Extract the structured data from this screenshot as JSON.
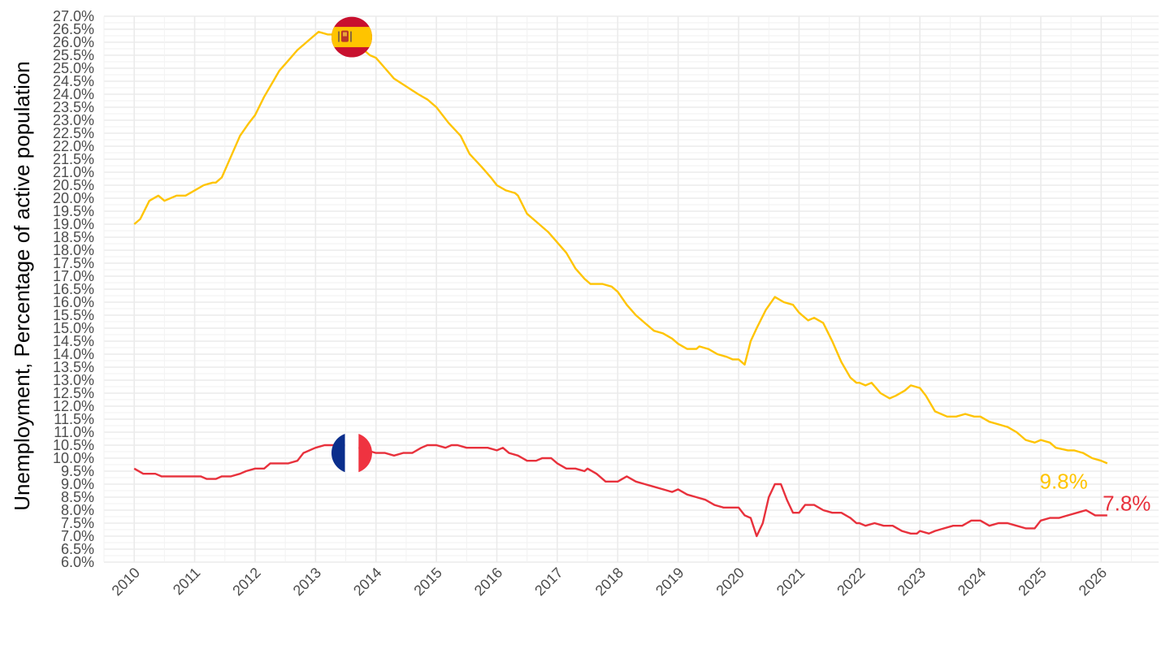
{
  "chart_data": {
    "type": "line",
    "title": "",
    "xlabel": "",
    "ylabel": "Unemployment, Percentage of active population",
    "xlim": [
      2009.5,
      2026.95
    ],
    "ylim": [
      6.0,
      27.0
    ],
    "y_ticks": [
      "6.0%",
      "6.5%",
      "7.0%",
      "7.5%",
      "8.0%",
      "8.5%",
      "9.0%",
      "9.5%",
      "10.0%",
      "10.5%",
      "11.0%",
      "11.5%",
      "12.0%",
      "12.5%",
      "13.0%",
      "13.5%",
      "14.0%",
      "14.5%",
      "15.0%",
      "15.5%",
      "16.0%",
      "16.5%",
      "17.0%",
      "17.5%",
      "18.0%",
      "18.5%",
      "19.0%",
      "19.5%",
      "20.0%",
      "20.5%",
      "21.0%",
      "21.5%",
      "22.0%",
      "22.5%",
      "23.0%",
      "23.5%",
      "24.0%",
      "24.5%",
      "25.0%",
      "25.5%",
      "26.0%",
      "26.5%",
      "27.0%"
    ],
    "x_ticks": [
      "2010",
      "2011",
      "2012",
      "2013",
      "2014",
      "2015",
      "2016",
      "2017",
      "2018",
      "2019",
      "2020",
      "2021",
      "2022",
      "2023",
      "2024",
      "2025",
      "2026"
    ],
    "grid": true,
    "legend": "none",
    "series": [
      {
        "country": "Spain",
        "color": "#FFC400",
        "flag_icon": "spain-flag-icon",
        "flag_at": [
          2013.6,
          26.2
        ],
        "end_label": "9.8%",
        "points": [
          [
            2010.0,
            19.0
          ],
          [
            2010.1,
            19.2
          ],
          [
            2010.25,
            19.9
          ],
          [
            2010.4,
            20.1
          ],
          [
            2010.5,
            19.9
          ],
          [
            2010.7,
            20.1
          ],
          [
            2010.85,
            20.1
          ],
          [
            2011.0,
            20.3
          ],
          [
            2011.15,
            20.5
          ],
          [
            2011.3,
            20.6
          ],
          [
            2011.35,
            20.6
          ],
          [
            2011.45,
            20.8
          ],
          [
            2011.6,
            21.6
          ],
          [
            2011.75,
            22.4
          ],
          [
            2011.9,
            22.9
          ],
          [
            2012.0,
            23.2
          ],
          [
            2012.15,
            23.9
          ],
          [
            2012.3,
            24.5
          ],
          [
            2012.4,
            24.9
          ],
          [
            2012.55,
            25.3
          ],
          [
            2012.7,
            25.7
          ],
          [
            2012.85,
            26.0
          ],
          [
            2012.95,
            26.2
          ],
          [
            2013.05,
            26.4
          ],
          [
            2013.2,
            26.3
          ],
          [
            2013.35,
            26.3
          ],
          [
            2013.5,
            26.1
          ],
          [
            2013.65,
            25.9
          ],
          [
            2013.8,
            25.7
          ],
          [
            2013.9,
            25.5
          ],
          [
            2014.0,
            25.4
          ],
          [
            2014.15,
            25.0
          ],
          [
            2014.3,
            24.6
          ],
          [
            2014.5,
            24.3
          ],
          [
            2014.7,
            24.0
          ],
          [
            2014.85,
            23.8
          ],
          [
            2015.0,
            23.5
          ],
          [
            2015.2,
            22.9
          ],
          [
            2015.4,
            22.4
          ],
          [
            2015.55,
            21.7
          ],
          [
            2015.75,
            21.2
          ],
          [
            2015.9,
            20.8
          ],
          [
            2016.0,
            20.5
          ],
          [
            2016.15,
            20.3
          ],
          [
            2016.3,
            20.2
          ],
          [
            2016.35,
            20.1
          ],
          [
            2016.5,
            19.4
          ],
          [
            2016.7,
            19.0
          ],
          [
            2016.85,
            18.7
          ],
          [
            2017.0,
            18.3
          ],
          [
            2017.15,
            17.9
          ],
          [
            2017.3,
            17.3
          ],
          [
            2017.45,
            16.9
          ],
          [
            2017.55,
            16.7
          ],
          [
            2017.75,
            16.7
          ],
          [
            2017.9,
            16.6
          ],
          [
            2018.0,
            16.4
          ],
          [
            2018.15,
            15.9
          ],
          [
            2018.3,
            15.5
          ],
          [
            2018.45,
            15.2
          ],
          [
            2018.6,
            14.9
          ],
          [
            2018.75,
            14.8
          ],
          [
            2018.9,
            14.6
          ],
          [
            2019.0,
            14.4
          ],
          [
            2019.15,
            14.2
          ],
          [
            2019.3,
            14.2
          ],
          [
            2019.35,
            14.3
          ],
          [
            2019.5,
            14.2
          ],
          [
            2019.65,
            14.0
          ],
          [
            2019.8,
            13.9
          ],
          [
            2019.9,
            13.8
          ],
          [
            2020.0,
            13.8
          ],
          [
            2020.1,
            13.6
          ],
          [
            2020.2,
            14.5
          ],
          [
            2020.3,
            15.0
          ],
          [
            2020.45,
            15.7
          ],
          [
            2020.6,
            16.2
          ],
          [
            2020.75,
            16.0
          ],
          [
            2020.9,
            15.9
          ],
          [
            2021.0,
            15.6
          ],
          [
            2021.15,
            15.3
          ],
          [
            2021.25,
            15.4
          ],
          [
            2021.4,
            15.2
          ],
          [
            2021.55,
            14.5
          ],
          [
            2021.7,
            13.7
          ],
          [
            2021.85,
            13.1
          ],
          [
            2021.95,
            12.9
          ],
          [
            2022.0,
            12.9
          ],
          [
            2022.1,
            12.8
          ],
          [
            2022.2,
            12.9
          ],
          [
            2022.35,
            12.5
          ],
          [
            2022.5,
            12.3
          ],
          [
            2022.6,
            12.4
          ],
          [
            2022.75,
            12.6
          ],
          [
            2022.85,
            12.8
          ],
          [
            2023.0,
            12.7
          ],
          [
            2023.1,
            12.4
          ],
          [
            2023.25,
            11.8
          ],
          [
            2023.45,
            11.6
          ],
          [
            2023.6,
            11.6
          ],
          [
            2023.75,
            11.7
          ],
          [
            2023.9,
            11.6
          ],
          [
            2024.0,
            11.6
          ],
          [
            2024.15,
            11.4
          ],
          [
            2024.3,
            11.3
          ],
          [
            2024.45,
            11.2
          ],
          [
            2024.6,
            11.0
          ],
          [
            2024.75,
            10.7
          ],
          [
            2024.9,
            10.6
          ],
          [
            2025.0,
            10.7
          ],
          [
            2025.15,
            10.6
          ],
          [
            2025.25,
            10.4
          ],
          [
            2025.45,
            10.3
          ],
          [
            2025.55,
            10.3
          ],
          [
            2025.7,
            10.2
          ],
          [
            2025.85,
            10.0
          ],
          [
            2026.0,
            9.9
          ],
          [
            2026.1,
            9.8
          ]
        ]
      },
      {
        "country": "France",
        "color": "#E8313C",
        "flag_icon": "france-flag-icon",
        "flag_at": [
          2013.6,
          10.2
        ],
        "end_label": "7.8%",
        "points": [
          [
            2010.0,
            9.6
          ],
          [
            2010.15,
            9.4
          ],
          [
            2010.35,
            9.4
          ],
          [
            2010.45,
            9.3
          ],
          [
            2010.6,
            9.3
          ],
          [
            2010.8,
            9.3
          ],
          [
            2011.0,
            9.3
          ],
          [
            2011.1,
            9.3
          ],
          [
            2011.2,
            9.2
          ],
          [
            2011.35,
            9.2
          ],
          [
            2011.45,
            9.3
          ],
          [
            2011.6,
            9.3
          ],
          [
            2011.75,
            9.4
          ],
          [
            2011.85,
            9.5
          ],
          [
            2012.0,
            9.6
          ],
          [
            2012.15,
            9.6
          ],
          [
            2012.25,
            9.8
          ],
          [
            2012.4,
            9.8
          ],
          [
            2012.55,
            9.8
          ],
          [
            2012.7,
            9.9
          ],
          [
            2012.8,
            10.2
          ],
          [
            2013.0,
            10.4
          ],
          [
            2013.15,
            10.5
          ],
          [
            2013.35,
            10.5
          ],
          [
            2013.5,
            10.5
          ],
          [
            2013.7,
            10.4
          ],
          [
            2013.85,
            10.3
          ],
          [
            2014.0,
            10.2
          ],
          [
            2014.15,
            10.2
          ],
          [
            2014.3,
            10.1
          ],
          [
            2014.45,
            10.2
          ],
          [
            2014.6,
            10.2
          ],
          [
            2014.75,
            10.4
          ],
          [
            2014.85,
            10.5
          ],
          [
            2015.0,
            10.5
          ],
          [
            2015.15,
            10.4
          ],
          [
            2015.25,
            10.5
          ],
          [
            2015.35,
            10.5
          ],
          [
            2015.5,
            10.4
          ],
          [
            2015.65,
            10.4
          ],
          [
            2015.85,
            10.4
          ],
          [
            2016.0,
            10.3
          ],
          [
            2016.1,
            10.4
          ],
          [
            2016.2,
            10.2
          ],
          [
            2016.35,
            10.1
          ],
          [
            2016.5,
            9.9
          ],
          [
            2016.65,
            9.9
          ],
          [
            2016.75,
            10.0
          ],
          [
            2016.9,
            10.0
          ],
          [
            2017.0,
            9.8
          ],
          [
            2017.15,
            9.6
          ],
          [
            2017.3,
            9.6
          ],
          [
            2017.45,
            9.5
          ],
          [
            2017.5,
            9.6
          ],
          [
            2017.65,
            9.4
          ],
          [
            2017.8,
            9.1
          ],
          [
            2018.0,
            9.1
          ],
          [
            2018.15,
            9.3
          ],
          [
            2018.3,
            9.1
          ],
          [
            2018.45,
            9.0
          ],
          [
            2018.6,
            8.9
          ],
          [
            2018.75,
            8.8
          ],
          [
            2018.9,
            8.7
          ],
          [
            2019.0,
            8.8
          ],
          [
            2019.15,
            8.6
          ],
          [
            2019.3,
            8.5
          ],
          [
            2019.45,
            8.4
          ],
          [
            2019.6,
            8.2
          ],
          [
            2019.75,
            8.1
          ],
          [
            2019.9,
            8.1
          ],
          [
            2020.0,
            8.1
          ],
          [
            2020.1,
            7.8
          ],
          [
            2020.2,
            7.7
          ],
          [
            2020.3,
            7.0
          ],
          [
            2020.4,
            7.5
          ],
          [
            2020.5,
            8.5
          ],
          [
            2020.6,
            9.0
          ],
          [
            2020.7,
            9.0
          ],
          [
            2020.8,
            8.4
          ],
          [
            2020.9,
            7.9
          ],
          [
            2021.0,
            7.9
          ],
          [
            2021.1,
            8.2
          ],
          [
            2021.25,
            8.2
          ],
          [
            2021.4,
            8.0
          ],
          [
            2021.55,
            7.9
          ],
          [
            2021.7,
            7.9
          ],
          [
            2021.85,
            7.7
          ],
          [
            2021.95,
            7.5
          ],
          [
            2022.0,
            7.5
          ],
          [
            2022.1,
            7.4
          ],
          [
            2022.25,
            7.5
          ],
          [
            2022.4,
            7.4
          ],
          [
            2022.55,
            7.4
          ],
          [
            2022.7,
            7.2
          ],
          [
            2022.85,
            7.1
          ],
          [
            2022.95,
            7.1
          ],
          [
            2023.0,
            7.2
          ],
          [
            2023.15,
            7.1
          ],
          [
            2023.25,
            7.2
          ],
          [
            2023.4,
            7.3
          ],
          [
            2023.55,
            7.4
          ],
          [
            2023.7,
            7.4
          ],
          [
            2023.85,
            7.6
          ],
          [
            2024.0,
            7.6
          ],
          [
            2024.15,
            7.4
          ],
          [
            2024.3,
            7.5
          ],
          [
            2024.45,
            7.5
          ],
          [
            2024.6,
            7.4
          ],
          [
            2024.75,
            7.3
          ],
          [
            2024.9,
            7.3
          ],
          [
            2025.0,
            7.6
          ],
          [
            2025.15,
            7.7
          ],
          [
            2025.3,
            7.7
          ],
          [
            2025.45,
            7.8
          ],
          [
            2025.6,
            7.9
          ],
          [
            2025.75,
            8.0
          ],
          [
            2025.9,
            7.8
          ],
          [
            2026.0,
            7.8
          ],
          [
            2026.1,
            7.8
          ]
        ]
      }
    ]
  }
}
